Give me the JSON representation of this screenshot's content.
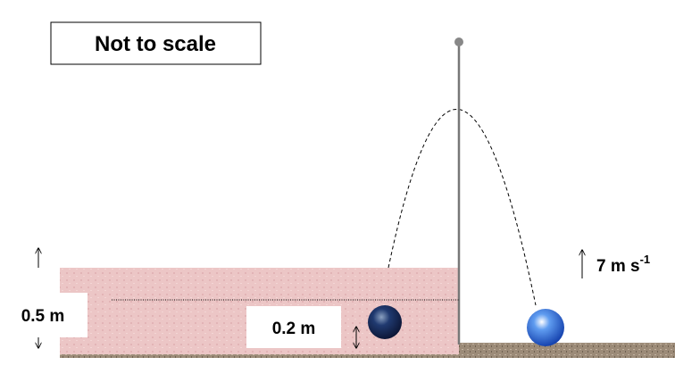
{
  "note": "Not to scale",
  "labels": {
    "wall_height": "0.5 m",
    "ball_height": "0.2 m",
    "speed": {
      "text": "7 m s",
      "exponent": "-1"
    }
  }
}
